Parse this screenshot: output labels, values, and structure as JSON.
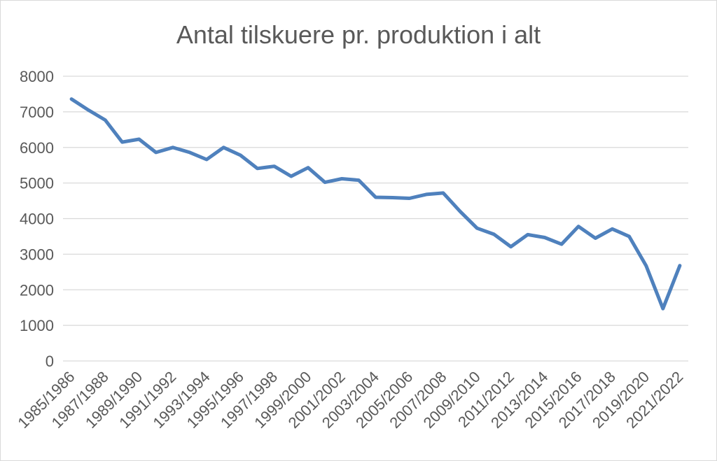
{
  "chart_data": {
    "type": "line",
    "title": "Antal tilskuere pr. produktion i alt",
    "ylim": [
      0,
      8000
    ],
    "yticks": [
      "0",
      "1000",
      "2000",
      "3000",
      "4000",
      "5000",
      "6000",
      "7000",
      "8000"
    ],
    "grid": true,
    "legend": "none",
    "x": [
      "1985/1986",
      "1986/1987",
      "1987/1988",
      "1988/1989",
      "1989/1990",
      "1990/1991",
      "1991/1992",
      "1992/1993",
      "1993/1994",
      "1994/1995",
      "1995/1996",
      "1996/1997",
      "1997/1998",
      "1998/1999",
      "1999/2000",
      "2000/2001",
      "2001/2002",
      "2002/2003",
      "2003/2004",
      "2004/2005",
      "2005/2006",
      "2006/2007",
      "2007/2008",
      "2008/2009",
      "2009/2010",
      "2010/2011",
      "2011/2012",
      "2012/2013",
      "2013/2014",
      "2014/2015",
      "2015/2016",
      "2016/2017",
      "2017/2018",
      "2018/2019",
      "2019/2020",
      "2020/2021",
      "2021/2022"
    ],
    "xticks_shown": [
      "1985/1986",
      "1987/1988",
      "1989/1990",
      "1991/1992",
      "1993/1994",
      "1995/1996",
      "1997/1998",
      "1999/2000",
      "2001/2002",
      "2003/2004",
      "2005/2006",
      "2007/2008",
      "2009/2010",
      "2011/2012",
      "2013/2014",
      "2015/2016",
      "2017/2018",
      "2019/2020",
      "2021/2022"
    ],
    "series": [
      {
        "values": [
          7360,
          7050,
          6770,
          6150,
          6230,
          5860,
          6000,
          5860,
          5660,
          6000,
          5780,
          5410,
          5470,
          5190,
          5430,
          5020,
          5120,
          5080,
          4600,
          4590,
          4570,
          4680,
          4720,
          4200,
          3730,
          3560,
          3210,
          3550,
          3470,
          3280,
          3780,
          3450,
          3710,
          3500,
          2680,
          1470,
          2680
        ],
        "color": "#4f81bd"
      }
    ]
  }
}
